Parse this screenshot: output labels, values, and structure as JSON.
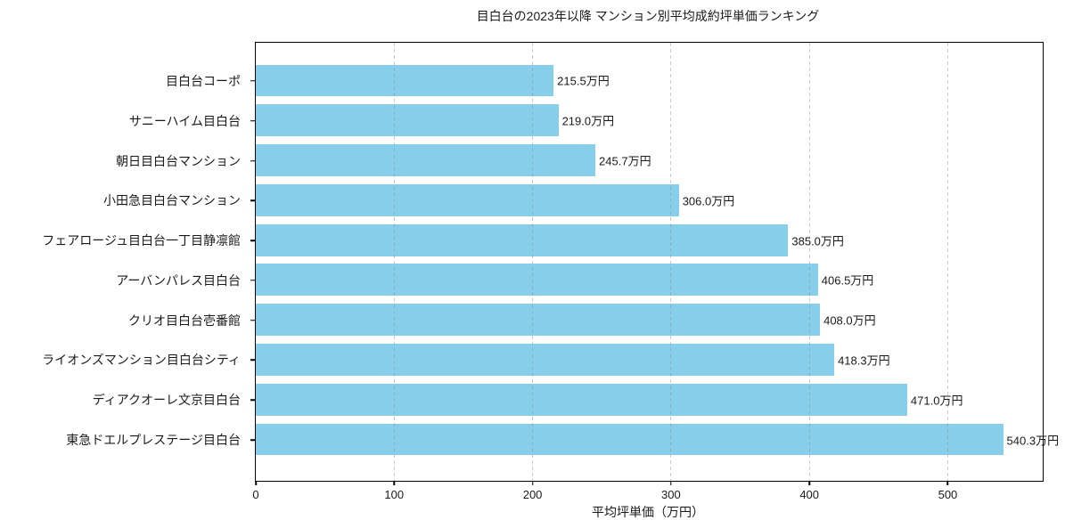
{
  "chart_data": {
    "type": "bar",
    "orientation": "horizontal",
    "title": "目白台の2023年以降 マンション別平均成約坪単価ランキング",
    "xlabel": "平均坪単価（万円）",
    "ylabel": "",
    "categories": [
      "目白台コーポ",
      "サニーハイム目白台",
      "朝日目白台マンション",
      "小田急目白台マンション",
      "フェアロージュ目白台一丁目静凛館",
      "アーバンパレス目白台",
      "クリオ目白台壱番館",
      "ライオンズマンション目白台シティ",
      "ディアクオーレ文京目白台",
      "東急ドエルプレステージ目白台"
    ],
    "values": [
      215.5,
      219.0,
      245.7,
      306.0,
      385.0,
      406.5,
      408.0,
      418.3,
      471.0,
      540.3
    ],
    "value_labels": [
      "215.5万円",
      "219.0万円",
      "245.7万円",
      "306.0万円",
      "385.0万円",
      "406.5万円",
      "408.0万円",
      "418.3万円",
      "471.0万円",
      "540.3万円"
    ],
    "xticks": [
      0,
      100,
      200,
      300,
      400,
      500
    ],
    "xtick_labels": [
      "0",
      "100",
      "200",
      "300",
      "400",
      "500"
    ],
    "xlim": [
      0,
      568.6
    ],
    "bar_color": "#87CEEB",
    "grid": {
      "axis": "x",
      "style": "dashed",
      "color": "#8a8a8a"
    },
    "legend": null
  }
}
